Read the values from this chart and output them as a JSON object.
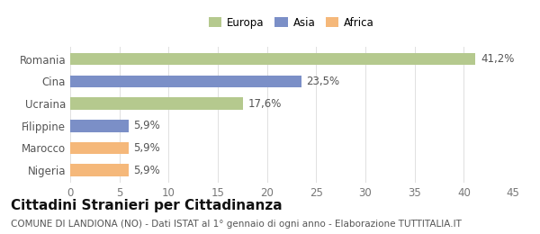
{
  "categories": [
    "Romania",
    "Cina",
    "Ucraina",
    "Filippine",
    "Marocco",
    "Nigeria"
  ],
  "values": [
    41.2,
    23.5,
    17.6,
    5.9,
    5.9,
    5.9
  ],
  "labels": [
    "41,2%",
    "23,5%",
    "17,6%",
    "5,9%",
    "5,9%",
    "5,9%"
  ],
  "colors": [
    "#b5c98e",
    "#7b8fc7",
    "#b5c98e",
    "#7b8fc7",
    "#f5b87a",
    "#f5b87a"
  ],
  "legend": [
    {
      "label": "Europa",
      "color": "#b5c98e"
    },
    {
      "label": "Asia",
      "color": "#7b8fc7"
    },
    {
      "label": "Africa",
      "color": "#f5b87a"
    }
  ],
  "xlim": [
    0,
    45
  ],
  "xticks": [
    0,
    5,
    10,
    15,
    20,
    25,
    30,
    35,
    40,
    45
  ],
  "title": "Cittadini Stranieri per Cittadinanza",
  "subtitle": "COMUNE DI LANDIONA (NO) - Dati ISTAT al 1° gennaio di ogni anno - Elaborazione TUTTITALIA.IT",
  "background_color": "#ffffff",
  "bar_height": 0.55,
  "label_fontsize": 8.5,
  "tick_fontsize": 8.5,
  "title_fontsize": 11,
  "subtitle_fontsize": 7.5
}
